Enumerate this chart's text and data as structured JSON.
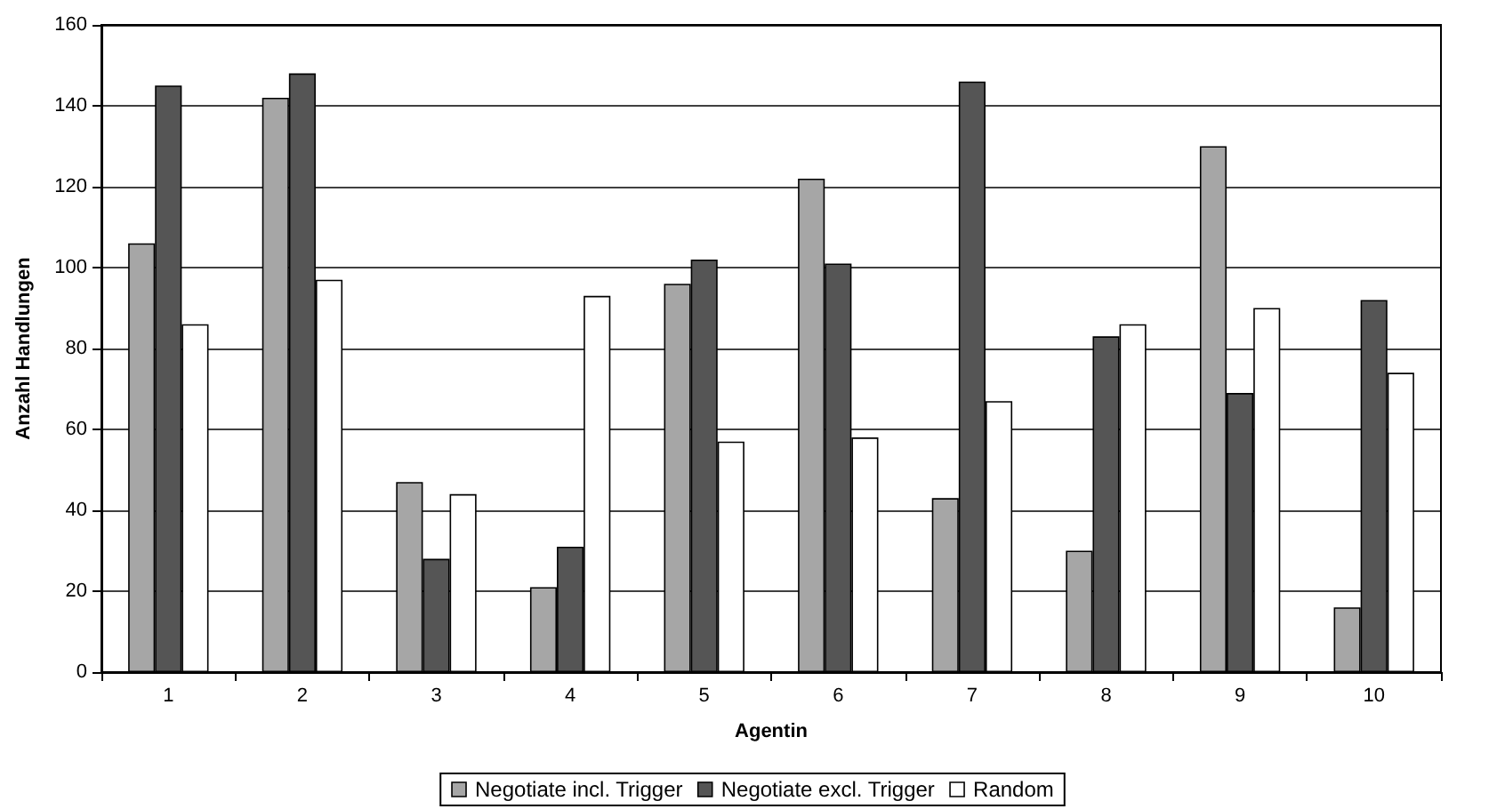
{
  "chart_data": {
    "type": "bar",
    "xlabel": "Agentin",
    "ylabel": "Anzahl Handlungen",
    "categories": [
      "1",
      "2",
      "3",
      "4",
      "5",
      "6",
      "7",
      "8",
      "9",
      "10"
    ],
    "series": [
      {
        "name": "Negotiate incl. Trigger",
        "color": "#a6a6a6",
        "values": [
          106,
          142,
          47,
          21,
          96,
          122,
          43,
          30,
          130,
          16
        ]
      },
      {
        "name": "Negotiate excl. Trigger",
        "color": "#555555",
        "values": [
          145,
          148,
          28,
          31,
          102,
          101,
          146,
          83,
          69,
          92
        ]
      },
      {
        "name": "Random",
        "color": "#ffffff",
        "values": [
          86,
          97,
          44,
          93,
          57,
          58,
          67,
          86,
          90,
          74
        ]
      }
    ],
    "ylim": [
      0,
      160
    ],
    "yticks": [
      0,
      20,
      40,
      60,
      80,
      100,
      120,
      140,
      160
    ],
    "grid": "y",
    "legend": "bottom"
  }
}
